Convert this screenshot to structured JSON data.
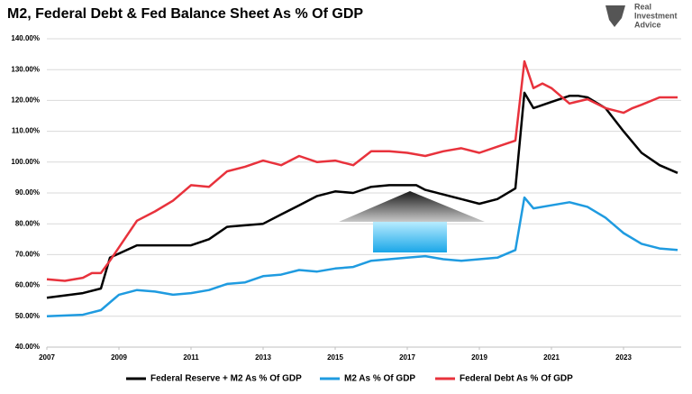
{
  "chart_data": {
    "type": "line",
    "title": "M2, Federal Debt & Fed Balance Sheet As % Of GDP",
    "logo": [
      "Real",
      "Investment",
      "Advice"
    ],
    "xlim": [
      2007,
      2024.6
    ],
    "xticks": [
      2007,
      2009,
      2011,
      2013,
      2015,
      2017,
      2019,
      2021,
      2023
    ],
    "ylim": [
      40,
      140
    ],
    "yticks": [
      {
        "value": 40,
        "label": "40.00%"
      },
      {
        "value": 50,
        "label": "50.00%"
      },
      {
        "value": 60,
        "label": "60.00%"
      },
      {
        "value": 70,
        "label": "70.00%"
      },
      {
        "value": 80,
        "label": "80.00%"
      },
      {
        "value": 90,
        "label": "90.00%"
      },
      {
        "value": 100,
        "label": "100.00%"
      },
      {
        "value": 110,
        "label": "110.00%"
      },
      {
        "value": 120,
        "label": "120.00%"
      },
      {
        "value": 130,
        "label": "130.00%"
      },
      {
        "value": 140,
        "label": "140.00%"
      }
    ],
    "grid": true,
    "series": [
      {
        "name": "Federal Reserve + M2 As % Of GDP",
        "color": "#000000",
        "x": [
          2007,
          2008,
          2008.5,
          2008.75,
          2009.5,
          2010,
          2011,
          2011.5,
          2012,
          2013,
          2013.5,
          2014,
          2014.5,
          2015,
          2015.5,
          2016,
          2016.5,
          2017,
          2017.25,
          2017.5,
          2018,
          2018.5,
          2019,
          2019.5,
          2020,
          2020.25,
          2020.5,
          2021,
          2021.5,
          2021.75,
          2022,
          2022.5,
          2023,
          2023.5,
          2024,
          2024.5
        ],
        "values": [
          56,
          57.5,
          59,
          69,
          73,
          73,
          73,
          75,
          79,
          80,
          83,
          86,
          89,
          90.5,
          90,
          92,
          92.5,
          92.5,
          92.5,
          91,
          89.5,
          88,
          86.5,
          88,
          91.5,
          122.5,
          117.5,
          119.5,
          121.5,
          121.5,
          121,
          117.5,
          110,
          103,
          99,
          96.5
        ]
      },
      {
        "name": "M2 As % Of GDP",
        "color": "#1f9be0",
        "x": [
          2007,
          2008,
          2008.5,
          2009,
          2009.5,
          2010,
          2010.5,
          2011,
          2011.5,
          2012,
          2012.5,
          2013,
          2013.5,
          2014,
          2014.5,
          2015,
          2015.5,
          2016,
          2016.5,
          2017,
          2017.5,
          2018,
          2018.5,
          2019,
          2019.5,
          2020,
          2020.25,
          2020.5,
          2021,
          2021.5,
          2022,
          2022.5,
          2023,
          2023.5,
          2024,
          2024.5
        ],
        "values": [
          50,
          50.5,
          52,
          57,
          58.5,
          58,
          57,
          57.5,
          58.5,
          60.5,
          61,
          63,
          63.5,
          65,
          64.5,
          65.5,
          66,
          68,
          68.5,
          69,
          69.5,
          68.5,
          68,
          68.5,
          69,
          71.5,
          88.5,
          85,
          86,
          87,
          85.5,
          82,
          77,
          73.5,
          72,
          71.5
        ]
      },
      {
        "name": "Federal Debt As % Of GDP",
        "color": "#e8323c",
        "x": [
          2007,
          2007.5,
          2008,
          2008.25,
          2008.5,
          2008.75,
          2009.5,
          2010,
          2010.5,
          2011,
          2011.5,
          2012,
          2012.5,
          2013,
          2013.5,
          2014,
          2014.5,
          2015,
          2015.5,
          2016,
          2016.5,
          2017,
          2017.5,
          2018,
          2018.5,
          2019,
          2019.5,
          2020,
          2020.25,
          2020.5,
          2020.75,
          2021,
          2021.5,
          2022,
          2022.5,
          2023,
          2023.25,
          2023.5,
          2024,
          2024.5
        ],
        "values": [
          62,
          61.5,
          62.5,
          64,
          64,
          68,
          81,
          84,
          87.5,
          92.5,
          92,
          97,
          98.5,
          100.5,
          99,
          102,
          100,
          100.5,
          99,
          103.5,
          103.5,
          103,
          102,
          103.5,
          104.5,
          103,
          105,
          107,
          132.7,
          124,
          125.5,
          124,
          119,
          120.4,
          117.5,
          116,
          117.5,
          118.6,
          121,
          121
        ]
      }
    ]
  }
}
